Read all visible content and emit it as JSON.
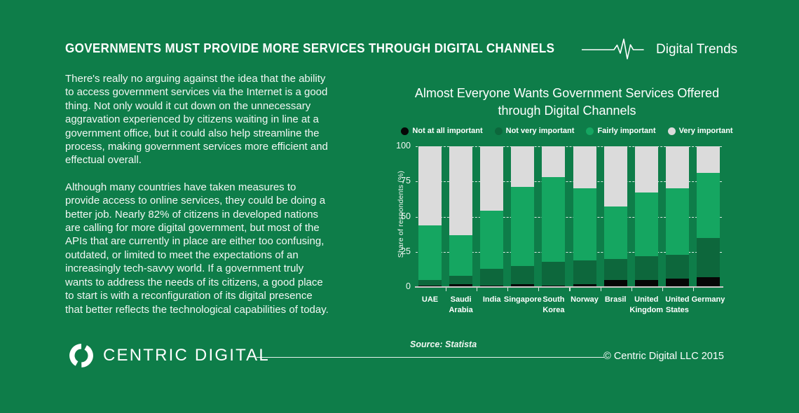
{
  "header": {
    "title": "GOVERNMENTS MUST PROVIDE MORE SERVICES THROUGH DIGITAL CHANNELS",
    "brand_tagline": "Digital Trends"
  },
  "article": {
    "paragraph1": "There's really no arguing against the idea that the ability to access government services via the Internet is a good thing. Not only would it cut down on the unnecessary aggravation experienced by citizens waiting in line at a government office, but it could also help streamline the process, making government services more efficient and effectual overall.",
    "paragraph2": "Although many countries have taken measures to provide access to online services, they could be doing a better job. Nearly 82% of citizens in developed nations are calling for more digital government, but most of the APIs that are currently in place are either too confusing, outdated, or limited to meet the expectations of an increasingly tech-savvy world. If a government truly wants to address the needs of its citizens, a good place to start is with a reconfiguration of its digital presence that better reflects the technological capabilities of today."
  },
  "chart_data": {
    "type": "bar",
    "stacked": true,
    "title": "Almost Everyone Wants Government Services Offered through Digital Channels",
    "title_lines": [
      "Almost Everyone Wants Government Services Offered",
      "through Digital Channels"
    ],
    "categories": [
      "UAE",
      "Saudi Arabia",
      "India",
      "Singapore",
      "South Korea",
      "Norway",
      "Brasil",
      "United Kingdom",
      "United States",
      "Germany"
    ],
    "series": [
      {
        "name": "Not at all important",
        "color": "#060606",
        "values": [
          1,
          2,
          1,
          2,
          1,
          2,
          5,
          5,
          6,
          7
        ]
      },
      {
        "name": "Not very important",
        "color": "#0D673C",
        "values": [
          4,
          6,
          12,
          13,
          17,
          17,
          15,
          17,
          17,
          28
        ]
      },
      {
        "name": "Fairly important",
        "color": "#15A661",
        "values": [
          39,
          29,
          41,
          56,
          60,
          51,
          37,
          45,
          47,
          46
        ]
      },
      {
        "name": "Very important",
        "color": "#DBDBDB",
        "values": [
          56,
          63,
          46,
          29,
          22,
          30,
          43,
          33,
          30,
          19
        ]
      }
    ],
    "xlabel": "",
    "ylabel": "Share of respondents (%)",
    "yticks": [
      0,
      25,
      50,
      75,
      100
    ],
    "ylim": [
      0,
      100
    ],
    "grid": "dashed horizontal",
    "legend_position": "top",
    "source": "Source: Statista"
  },
  "footer": {
    "brand": "CENTRIC DIGITAL",
    "copyright": "© Centric Digital LLC 2015"
  },
  "colors": {
    "background": "#0E7D49",
    "text": "#F5F8F5",
    "axis_line": "#CFC9C9"
  }
}
